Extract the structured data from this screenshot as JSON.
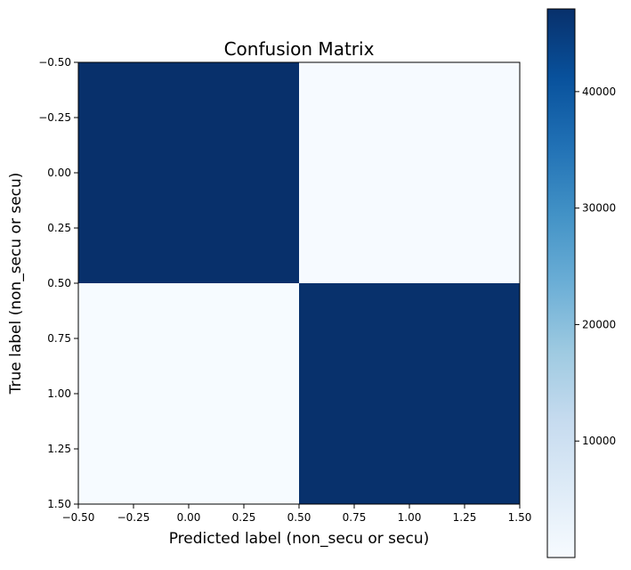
{
  "chart_data": {
    "type": "heatmap",
    "title": "Confusion Matrix",
    "xlabel": "Predicted label (non_secu or secu)",
    "ylabel": "True label (non_secu or secu)",
    "xlim": [
      -0.5,
      1.5
    ],
    "ylim": [
      1.5,
      -0.5
    ],
    "xticks": [
      "−0.50",
      "−0.25",
      "0.00",
      "0.25",
      "0.50",
      "0.75",
      "1.00",
      "1.25",
      "1.50"
    ],
    "yticks": [
      "−0.50",
      "−0.25",
      "0.00",
      "0.25",
      "0.50",
      "0.75",
      "1.00",
      "1.25",
      "1.50"
    ],
    "matrix": [
      [
        47100,
        200
      ],
      [
        150,
        47000
      ]
    ],
    "colormap": "Blues",
    "colorbar": {
      "range": [
        0,
        47100
      ],
      "ticks": [
        10000,
        20000,
        30000,
        40000
      ],
      "tick_labels": [
        "10000",
        "20000",
        "30000",
        "40000"
      ]
    },
    "grid": false
  }
}
